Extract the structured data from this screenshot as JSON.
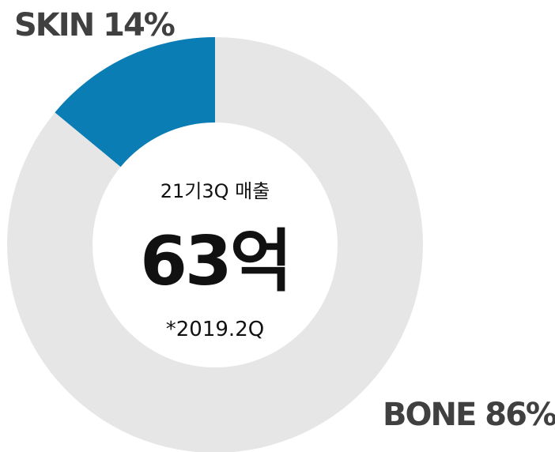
{
  "chart_data": {
    "type": "donut",
    "categories": [
      "SKIN",
      "BONE"
    ],
    "values": [
      14,
      86
    ],
    "value_labels": [
      "14%",
      "86%"
    ],
    "colors": [
      "#0a7db4",
      "#e6e6e6"
    ],
    "center_top": "21기3Q 매출",
    "center_main": "63억",
    "center_bottom": "*2019.2Q"
  }
}
